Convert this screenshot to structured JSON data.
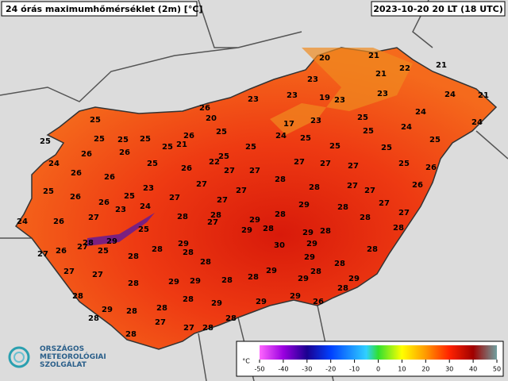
{
  "header": {
    "title": "24 órás maximumhőmérséklet (2m) [°C]",
    "datetime": "2023-10-20 20 LT (18 UTC)"
  },
  "stations": [
    20,
    21,
    21,
    22,
    21,
    23,
    23,
    23,
    19,
    23,
    23,
    24,
    21,
    24,
    24,
    26,
    20,
    17,
    23,
    25,
    24,
    25,
    24,
    25,
    25,
    25,
    25,
    25,
    26,
    21,
    25,
    25,
    25,
    25,
    25,
    25,
    25,
    26,
    26,
    25,
    22,
    24,
    25,
    26,
    27,
    27,
    27,
    27,
    27,
    25,
    26,
    26,
    26,
    27,
    28,
    23,
    27,
    28,
    27,
    27,
    26,
    25,
    26,
    26,
    25,
    27,
    27,
    29,
    28,
    27,
    23,
    24,
    24,
    26,
    27,
    28,
    28,
    27,
    29,
    28,
    28,
    27,
    25,
    29,
    28,
    29,
    28,
    28,
    28,
    29,
    27,
    25,
    29,
    29,
    26,
    27,
    30,
    28,
    28,
    28,
    28,
    29,
    28,
    28,
    27,
    27,
    29,
    28,
    28,
    28,
    29,
    29,
    28,
    29,
    29,
    28,
    28,
    28,
    29,
    29,
    29,
    26,
    28,
    29,
    28,
    28,
    28,
    27,
    27,
    28,
    28
  ],
  "colorbar": {
    "unit": "°C",
    "ticks": [
      -50,
      -40,
      -30,
      -20,
      -10,
      0,
      10,
      20,
      30,
      40,
      50
    ]
  },
  "logo": {
    "lines": [
      "ORSZÁGOS",
      "METEOROLÓGIAI",
      "SZOLGÁLAT"
    ]
  }
}
